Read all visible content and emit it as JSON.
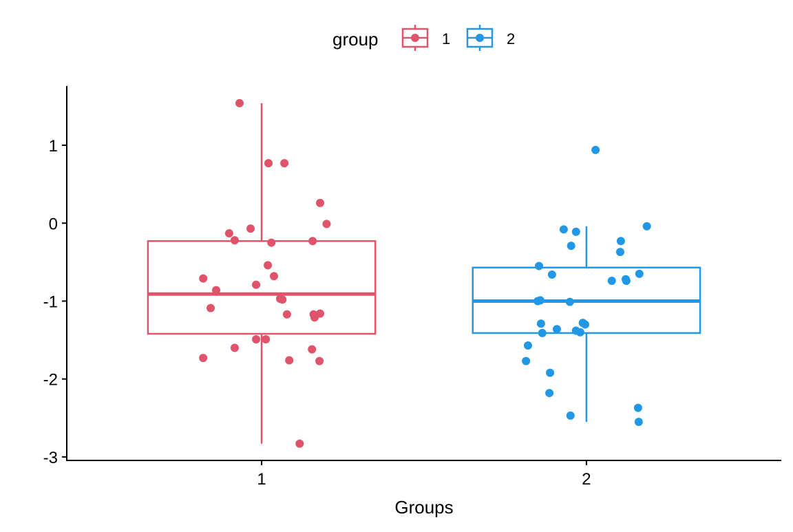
{
  "chart_data": {
    "type": "boxplot",
    "title": "",
    "xlabel": "Groups",
    "ylabel": "",
    "legend": {
      "title": "group",
      "position": "top",
      "entries": [
        "1",
        "2"
      ]
    },
    "ylim": [
      -3.045,
      1.76
    ],
    "xlim": [
      0.4,
      2.6
    ],
    "yticks": [
      -3,
      -2,
      -1,
      0,
      1
    ],
    "ytick_labels": [
      "-3",
      "-2",
      "-1",
      "0",
      "1"
    ],
    "categories": [
      "1",
      "2"
    ],
    "colors": {
      "1": "#DF536B",
      "2": "#2297E6"
    },
    "series": [
      {
        "name": "1",
        "box": {
          "whisker_low": -2.83,
          "q1": -1.42,
          "median": -0.91,
          "q3": -0.23,
          "whisker_high": 1.54
        },
        "points": [
          [
            -0.068,
            1.54
          ],
          [
            0.021,
            0.77
          ],
          [
            0.07,
            0.77
          ],
          [
            0.18,
            0.26
          ],
          [
            0.2,
            -0.01
          ],
          [
            -0.034,
            -0.07
          ],
          [
            -0.1,
            -0.13
          ],
          [
            -0.083,
            -0.22
          ],
          [
            0.03,
            -0.25
          ],
          [
            0.157,
            -0.23
          ],
          [
            0.019,
            -0.54
          ],
          [
            0.038,
            -0.68
          ],
          [
            -0.18,
            -0.71
          ],
          [
            -0.017,
            -0.79
          ],
          [
            -0.14,
            -0.86
          ],
          [
            0.057,
            -0.97
          ],
          [
            0.064,
            -0.98
          ],
          [
            -0.157,
            -1.09
          ],
          [
            0.078,
            -1.17
          ],
          [
            0.16,
            -1.17
          ],
          [
            0.163,
            -1.21
          ],
          [
            0.18,
            -1.16
          ],
          [
            -0.017,
            -1.49
          ],
          [
            0.013,
            -1.49
          ],
          [
            -0.083,
            -1.6
          ],
          [
            0.155,
            -1.62
          ],
          [
            -0.18,
            -1.73
          ],
          [
            0.085,
            -1.76
          ],
          [
            0.178,
            -1.77
          ],
          [
            0.117,
            -2.83
          ]
        ]
      },
      {
        "name": "2",
        "box": {
          "whisker_low": -2.55,
          "q1": -1.41,
          "median": -1.0,
          "q3": -0.57,
          "whisker_high": -0.04
        },
        "points": [
          [
            0.028,
            0.94
          ],
          [
            0.186,
            -0.04
          ],
          [
            -0.07,
            -0.08
          ],
          [
            -0.032,
            -0.11
          ],
          [
            0.106,
            -0.23
          ],
          [
            -0.047,
            -0.29
          ],
          [
            0.104,
            -0.37
          ],
          [
            -0.146,
            -0.55
          ],
          [
            0.163,
            -0.65
          ],
          [
            -0.106,
            -0.66
          ],
          [
            0.078,
            -0.74
          ],
          [
            0.121,
            -0.72
          ],
          [
            0.123,
            -0.74
          ],
          [
            -0.15,
            -1.0
          ],
          [
            -0.142,
            -0.99
          ],
          [
            -0.051,
            -1.01
          ],
          [
            -0.14,
            -1.29
          ],
          [
            -0.011,
            -1.28
          ],
          [
            -0.004,
            -1.3
          ],
          [
            -0.091,
            -1.36
          ],
          [
            -0.032,
            -1.38
          ],
          [
            -0.019,
            -1.4
          ],
          [
            -0.136,
            -1.41
          ],
          [
            -0.18,
            -1.57
          ],
          [
            -0.186,
            -1.77
          ],
          [
            -0.112,
            -1.92
          ],
          [
            -0.114,
            -2.18
          ],
          [
            0.159,
            -2.37
          ],
          [
            -0.049,
            -2.47
          ],
          [
            0.161,
            -2.55
          ]
        ]
      }
    ]
  }
}
